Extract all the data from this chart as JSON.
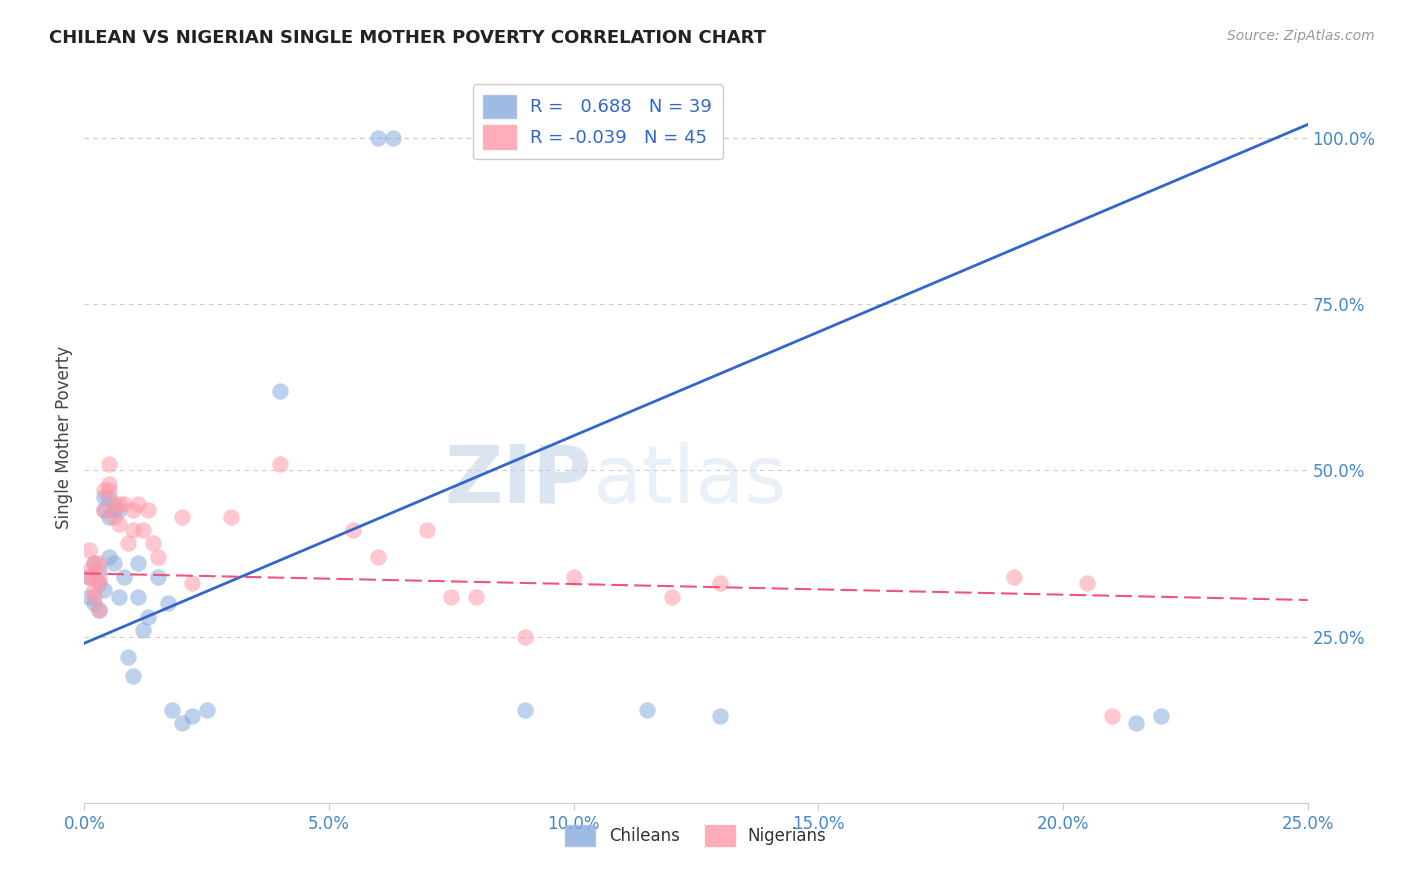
{
  "title": "CHILEAN VS NIGERIAN SINGLE MOTHER POVERTY CORRELATION CHART",
  "source": "Source: ZipAtlas.com",
  "ylabel": "Single Mother Poverty",
  "legend_blue_r": "0.688",
  "legend_blue_n": "39",
  "legend_pink_r": "-0.039",
  "legend_pink_n": "45",
  "blue_color": "#88AADD",
  "pink_color": "#FF99AA",
  "blue_line_color": "#3366CC",
  "pink_line_color": "#EE5577",
  "watermark_zip": "ZIP",
  "watermark_atlas": "atlas",
  "xlim": [
    0.0,
    0.25
  ],
  "ylim": [
    0.0,
    1.1
  ],
  "yticks": [
    0.25,
    0.5,
    0.75,
    1.0
  ],
  "xticks": [
    0.0,
    0.05,
    0.1,
    0.15,
    0.2,
    0.25
  ],
  "blue_x": [
    0.001,
    0.001,
    0.002,
    0.002,
    0.003,
    0.003,
    0.003,
    0.004,
    0.004,
    0.004,
    0.005,
    0.005,
    0.005,
    0.006,
    0.006,
    0.007,
    0.007,
    0.008,
    0.009,
    0.01,
    0.011,
    0.011,
    0.012,
    0.013,
    0.015,
    0.017,
    0.018,
    0.02,
    0.022,
    0.025,
    0.04,
    0.06,
    0.063,
    0.13,
    0.215,
    0.22,
    0.115,
    0.09,
    0.125
  ],
  "blue_y": [
    0.34,
    0.31,
    0.36,
    0.3,
    0.35,
    0.33,
    0.29,
    0.46,
    0.44,
    0.32,
    0.46,
    0.43,
    0.37,
    0.44,
    0.36,
    0.44,
    0.31,
    0.34,
    0.22,
    0.19,
    0.36,
    0.31,
    0.26,
    0.28,
    0.34,
    0.3,
    0.14,
    0.12,
    0.13,
    0.14,
    0.62,
    1.0,
    1.0,
    0.13,
    0.12,
    0.13,
    0.14,
    0.14,
    1.0
  ],
  "pink_x": [
    0.001,
    0.001,
    0.001,
    0.002,
    0.002,
    0.002,
    0.002,
    0.003,
    0.003,
    0.003,
    0.003,
    0.004,
    0.004,
    0.005,
    0.005,
    0.005,
    0.006,
    0.006,
    0.007,
    0.007,
    0.008,
    0.009,
    0.01,
    0.01,
    0.011,
    0.012,
    0.013,
    0.014,
    0.015,
    0.02,
    0.022,
    0.03,
    0.04,
    0.055,
    0.06,
    0.07,
    0.075,
    0.08,
    0.09,
    0.1,
    0.12,
    0.13,
    0.19,
    0.205,
    0.21
  ],
  "pink_y": [
    0.35,
    0.34,
    0.38,
    0.34,
    0.36,
    0.32,
    0.31,
    0.36,
    0.34,
    0.33,
    0.29,
    0.47,
    0.44,
    0.51,
    0.48,
    0.47,
    0.45,
    0.43,
    0.45,
    0.42,
    0.45,
    0.39,
    0.44,
    0.41,
    0.45,
    0.41,
    0.44,
    0.39,
    0.37,
    0.43,
    0.33,
    0.43,
    0.51,
    0.41,
    0.37,
    0.41,
    0.31,
    0.31,
    0.25,
    0.34,
    0.31,
    0.33,
    0.34,
    0.33,
    0.13
  ],
  "blue_line_x0": 0.0,
  "blue_line_y0": 0.24,
  "blue_line_x1": 0.25,
  "blue_line_y1": 1.02,
  "pink_line_x0": 0.0,
  "pink_line_y0": 0.345,
  "pink_line_x1": 0.25,
  "pink_line_y1": 0.305
}
